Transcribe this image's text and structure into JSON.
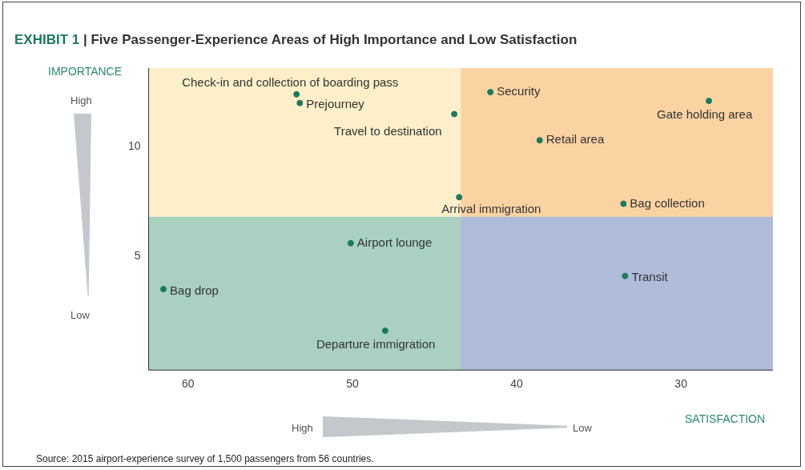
{
  "chart_data": {
    "type": "scatter",
    "title": "EXHIBIT 1 | Five Passenger-Experience Areas of High Importance and Low Satisfaction",
    "xlabel": "SATISFACTION",
    "ylabel": "IMPORTANCE",
    "x": [
      53.4,
      53.2,
      43.8,
      41.6,
      28.3,
      38.6,
      43.5,
      33.5,
      50.1,
      33.4,
      61.5,
      48.0
    ],
    "values": [
      12.4,
      12.0,
      11.5,
      12.5,
      12.1,
      10.3,
      7.7,
      7.4,
      5.6,
      4.1,
      3.5,
      1.6
    ],
    "color": "#1b7a5b",
    "marker": "circle",
    "xlim": [
      62.4,
      24.4
    ],
    "xticks": [
      60,
      50,
      40,
      30
    ],
    "ylim": [
      -0.2,
      13.6
    ],
    "yticks": [
      5,
      10
    ],
    "legend": false,
    "bands": [
      {
        "axis": "y",
        "from": 6.8,
        "to": 13.6,
        "color": "#fdefc9"
      },
      {
        "axis": "y",
        "from": -0.2,
        "to": 6.8,
        "color": "#a9d0c1"
      },
      {
        "axis": "x",
        "from": 43.4,
        "to": 24.4,
        "color": "#fbd3a2"
      },
      {
        "axis": "x",
        "from": 43.4,
        "to": 24.4,
        "color": "#aebbd9"
      }
    ],
    "annotations": [
      {
        "text": "Check-in and collection of boarding pass",
        "x": 53.4,
        "y": 12.4
      },
      {
        "text": "Prejourney",
        "x": 53.2,
        "y": 12.0
      },
      {
        "text": "Travel to destination",
        "x": 43.8,
        "y": 11.5
      },
      {
        "text": "Security",
        "x": 41.6,
        "y": 12.5
      },
      {
        "text": "Gate holding area",
        "x": 28.3,
        "y": 12.1
      },
      {
        "text": "Retail area",
        "x": 38.6,
        "y": 10.3
      },
      {
        "text": "Arrival immigration",
        "x": 43.5,
        "y": 7.7
      },
      {
        "text": "Bag collection",
        "x": 33.5,
        "y": 7.4
      },
      {
        "text": "Airport lounge",
        "x": 50.1,
        "y": 5.6
      },
      {
        "text": "Transit",
        "x": 33.4,
        "y": 4.1
      },
      {
        "text": "Bag drop",
        "x": 61.5,
        "y": 3.5
      },
      {
        "text": "Departure immigration",
        "x": 48.0,
        "y": 1.6
      },
      "High",
      "Low",
      "High",
      "Low",
      "Source: 2015 airport-experience survey of 1,500 passengers from 56 countries."
    ]
  }
}
